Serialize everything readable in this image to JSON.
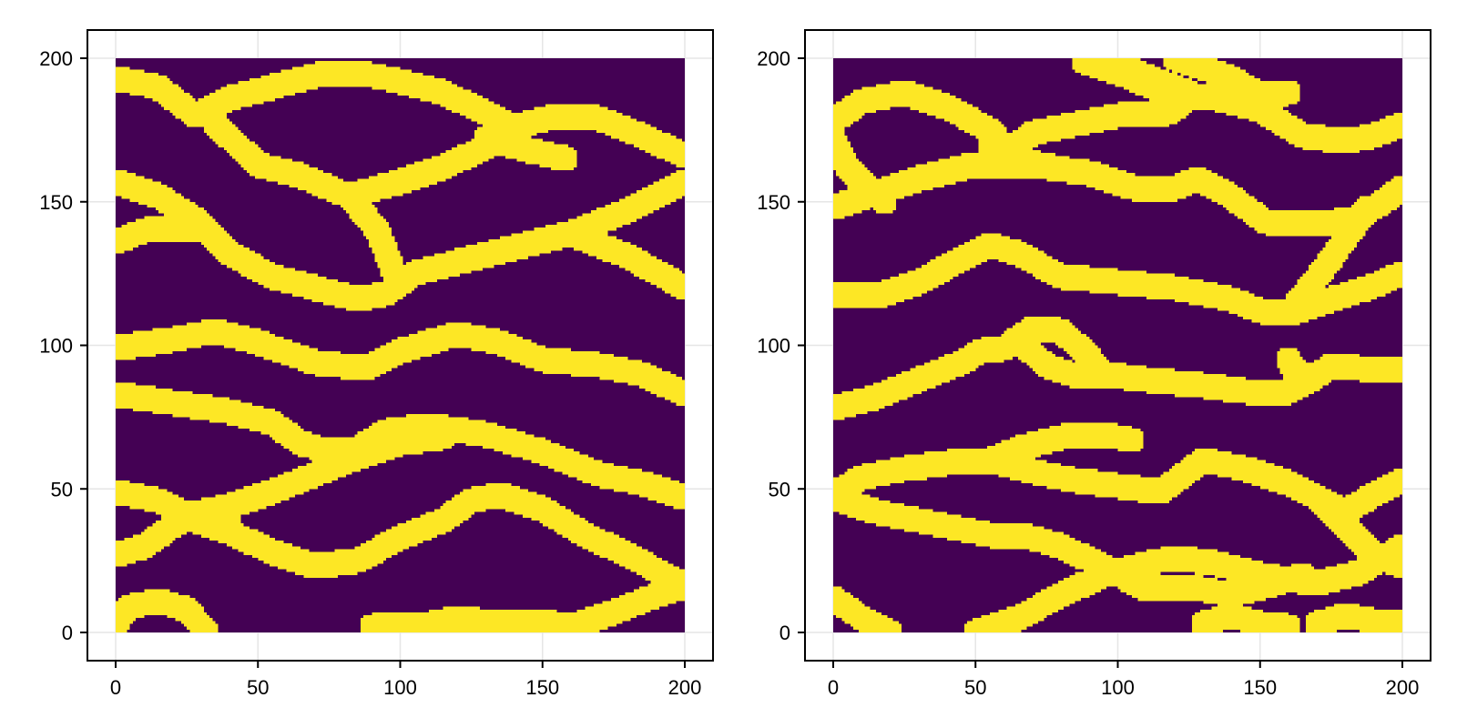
{
  "figure": {
    "background": "#ffffff",
    "frame_color": "#000000",
    "grid_color": "#e6e6e6",
    "font": "sans"
  },
  "chart_data": [
    {
      "type": "heatmap",
      "title": "",
      "xlabel": "",
      "ylabel": "",
      "xlim": [
        -10,
        210
      ],
      "ylim": [
        -10,
        210
      ],
      "grid": true,
      "x_ticks": [
        0,
        50,
        100,
        150,
        200
      ],
      "y_ticks": [
        0,
        50,
        100,
        150,
        200
      ],
      "x_tick_labels": [
        "0",
        "50",
        "100",
        "150",
        "200"
      ],
      "y_tick_labels": [
        "0",
        "50",
        "100",
        "150",
        "200"
      ],
      "extent": [
        0,
        200,
        0,
        200
      ],
      "grid_size": 200,
      "value_range": [
        0,
        1
      ],
      "colors": {
        "0": "#440154",
        "1": "#fde725"
      },
      "channel_width": 9,
      "channels": [
        [
          [
            0,
            193
          ],
          [
            15,
            190
          ],
          [
            28,
            180
          ],
          [
            40,
            186
          ],
          [
            55,
            190
          ],
          [
            70,
            194
          ],
          [
            85,
            195
          ],
          [
            100,
            192
          ],
          [
            115,
            188
          ],
          [
            128,
            182
          ],
          [
            140,
            176
          ],
          [
            155,
            180
          ],
          [
            170,
            179
          ],
          [
            185,
            173
          ],
          [
            200,
            166
          ]
        ],
        [
          [
            0,
            157
          ],
          [
            15,
            152
          ],
          [
            28,
            144
          ],
          [
            40,
            132
          ],
          [
            55,
            124
          ],
          [
            70,
            120
          ],
          [
            85,
            116
          ],
          [
            95,
            118
          ],
          [
            105,
            125
          ],
          [
            120,
            129
          ],
          [
            140,
            134
          ],
          [
            160,
            139
          ],
          [
            180,
            147
          ],
          [
            200,
            157
          ]
        ],
        [
          [
            0,
            136
          ],
          [
            10,
            140
          ],
          [
            25,
            141
          ],
          [
            32,
            140
          ]
        ],
        [
          [
            35,
            177
          ],
          [
            50,
            163
          ],
          [
            65,
            159
          ],
          [
            82,
            152
          ],
          [
            100,
            157
          ],
          [
            115,
            162
          ],
          [
            130,
            169
          ]
        ],
        [
          [
            82,
            152
          ],
          [
            92,
            140
          ],
          [
            98,
            125
          ]
        ],
        [
          [
            130,
            172
          ],
          [
            145,
            168
          ],
          [
            158,
            165
          ]
        ],
        [
          [
            162,
            138
          ],
          [
            180,
            131
          ],
          [
            200,
            120
          ]
        ],
        [
          [
            0,
            99
          ],
          [
            20,
            102
          ],
          [
            35,
            105
          ],
          [
            50,
            101
          ],
          [
            70,
            94
          ],
          [
            88,
            92
          ],
          [
            100,
            98
          ],
          [
            120,
            104
          ],
          [
            135,
            101
          ],
          [
            150,
            95
          ],
          [
            170,
            93
          ],
          [
            185,
            90
          ],
          [
            200,
            83
          ]
        ],
        [
          [
            0,
            83
          ],
          [
            20,
            80
          ],
          [
            40,
            77
          ],
          [
            55,
            73
          ],
          [
            65,
            66
          ],
          [
            75,
            63
          ],
          [
            85,
            64
          ],
          [
            95,
            70
          ],
          [
            110,
            72
          ],
          [
            130,
            69
          ],
          [
            150,
            63
          ],
          [
            170,
            55
          ],
          [
            185,
            52
          ],
          [
            200,
            47
          ]
        ],
        [
          [
            0,
            49
          ],
          [
            15,
            46
          ],
          [
            25,
            41
          ],
          [
            40,
            44
          ],
          [
            55,
            49
          ],
          [
            70,
            55
          ],
          [
            85,
            61
          ],
          [
            100,
            66
          ],
          [
            115,
            68
          ]
        ],
        [
          [
            0,
            27
          ],
          [
            10,
            30
          ],
          [
            20,
            37
          ],
          [
            30,
            42
          ],
          [
            40,
            41
          ]
        ],
        [
          [
            25,
            40
          ],
          [
            40,
            35
          ],
          [
            55,
            28
          ],
          [
            70,
            23
          ],
          [
            85,
            25
          ],
          [
            100,
            33
          ],
          [
            115,
            39
          ],
          [
            125,
            46
          ],
          [
            135,
            48
          ],
          [
            150,
            43
          ],
          [
            165,
            34
          ],
          [
            180,
            27
          ],
          [
            195,
            19
          ],
          [
            200,
            16
          ]
        ],
        [
          [
            0,
            3
          ],
          [
            5,
            9
          ],
          [
            15,
            11
          ],
          [
            25,
            8
          ],
          [
            32,
            0
          ]
        ],
        [
          [
            90,
            2
          ],
          [
            110,
            3
          ],
          [
            120,
            5
          ],
          [
            135,
            3
          ],
          [
            150,
            4
          ],
          [
            160,
            2
          ],
          [
            175,
            7
          ],
          [
            190,
            13
          ],
          [
            200,
            16
          ]
        ]
      ]
    },
    {
      "type": "heatmap",
      "title": "",
      "xlabel": "",
      "ylabel": "",
      "xlim": [
        -10,
        210
      ],
      "ylim": [
        -10,
        210
      ],
      "grid": true,
      "x_ticks": [
        0,
        50,
        100,
        150,
        200
      ],
      "y_ticks": [
        0,
        50,
        100,
        150,
        200
      ],
      "x_tick_labels": [
        "0",
        "50",
        "100",
        "150",
        "200"
      ],
      "y_tick_labels": [
        "0",
        "50",
        "100",
        "150",
        "200"
      ],
      "extent": [
        0,
        200,
        0,
        200
      ],
      "grid_size": 200,
      "value_range": [
        0,
        1
      ],
      "colors": {
        "0": "#440154",
        "1": "#fde725"
      },
      "channel_width": 9,
      "channels": [
        [
          [
            0,
            178
          ],
          [
            10,
            185
          ],
          [
            25,
            188
          ],
          [
            40,
            183
          ],
          [
            55,
            175
          ],
          [
            63,
            166
          ]
        ],
        [
          [
            60,
            166
          ],
          [
            70,
            174
          ],
          [
            85,
            177
          ],
          [
            100,
            180
          ],
          [
            118,
            181
          ],
          [
            125,
            186
          ]
        ],
        [
          [
            0,
            148
          ],
          [
            15,
            153
          ],
          [
            30,
            158
          ],
          [
            50,
            163
          ],
          [
            65,
            162
          ],
          [
            75,
            163
          ]
        ],
        [
          [
            55,
            169
          ],
          [
            75,
            162
          ],
          [
            90,
            160
          ],
          [
            105,
            155
          ],
          [
            118,
            154
          ],
          [
            128,
            158
          ],
          [
            138,
            153
          ],
          [
            152,
            143
          ],
          [
            170,
            142
          ],
          [
            183,
            144
          ],
          [
            192,
            149
          ],
          [
            200,
            155
          ]
        ],
        [
          [
            0,
            172
          ],
          [
            5,
            162
          ],
          [
            12,
            155
          ],
          [
            18,
            150
          ]
        ],
        [
          [
            88,
            199
          ],
          [
            100,
            195
          ],
          [
            112,
            190
          ],
          [
            125,
            187
          ],
          [
            135,
            186
          ],
          [
            150,
            182
          ],
          [
            165,
            173
          ],
          [
            180,
            171
          ],
          [
            190,
            173
          ],
          [
            200,
            177
          ]
        ],
        [
          [
            100,
            198
          ],
          [
            112,
            193
          ],
          [
            125,
            188
          ],
          [
            128,
            186
          ]
        ],
        [
          [
            120,
            200
          ],
          [
            140,
            193
          ],
          [
            150,
            187
          ],
          [
            160,
            188
          ]
        ],
        [
          [
            0,
            118
          ],
          [
            15,
            117
          ],
          [
            30,
            122
          ],
          [
            45,
            130
          ],
          [
            55,
            135
          ],
          [
            65,
            132
          ],
          [
            80,
            124
          ],
          [
            100,
            122
          ],
          [
            120,
            120
          ],
          [
            140,
            116
          ],
          [
            150,
            112
          ],
          [
            160,
            111
          ]
        ],
        [
          [
            160,
            111
          ],
          [
            172,
            126
          ],
          [
            182,
            140
          ],
          [
            188,
            148
          ]
        ],
        [
          [
            160,
            111
          ],
          [
            175,
            116
          ],
          [
            188,
            120
          ],
          [
            200,
            125
          ]
        ],
        [
          [
            0,
            78
          ],
          [
            15,
            82
          ],
          [
            30,
            88
          ],
          [
            45,
            94
          ],
          [
            52,
            98
          ],
          [
            60,
            99
          ]
        ],
        [
          [
            60,
            99
          ],
          [
            70,
            106
          ],
          [
            80,
            105
          ],
          [
            88,
            98
          ],
          [
            95,
            90
          ],
          [
            110,
            88
          ],
          [
            130,
            86
          ],
          [
            145,
            84
          ],
          [
            158,
            83
          ],
          [
            168,
            88
          ],
          [
            175,
            93
          ],
          [
            185,
            92
          ],
          [
            200,
            91
          ]
        ],
        [
          [
            68,
            99
          ],
          [
            75,
            93
          ],
          [
            83,
            90
          ],
          [
            95,
            89
          ]
        ],
        [
          [
            160,
            95
          ],
          [
            162,
            91
          ],
          [
            168,
            89
          ]
        ],
        [
          [
            0,
            48
          ],
          [
            10,
            54
          ],
          [
            25,
            57
          ],
          [
            40,
            59
          ],
          [
            55,
            60
          ],
          [
            65,
            64
          ],
          [
            80,
            68
          ],
          [
            95,
            69
          ],
          [
            105,
            67
          ]
        ],
        [
          [
            0,
            47
          ],
          [
            15,
            42
          ],
          [
            30,
            39
          ],
          [
            45,
            36
          ],
          [
            55,
            34
          ],
          [
            70,
            33
          ],
          [
            80,
            30
          ],
          [
            95,
            23
          ],
          [
            110,
            15
          ],
          [
            125,
            16
          ],
          [
            140,
            13
          ],
          [
            155,
            17
          ],
          [
            165,
            20
          ]
        ],
        [
          [
            55,
            60
          ],
          [
            70,
            56
          ],
          [
            85,
            53
          ],
          [
            100,
            51
          ],
          [
            115,
            49
          ],
          [
            130,
            60
          ],
          [
            145,
            57
          ],
          [
            160,
            52
          ],
          [
            170,
            47
          ],
          [
            180,
            42
          ],
          [
            190,
            48
          ],
          [
            200,
            53
          ]
        ],
        [
          [
            170,
            47
          ],
          [
            180,
            37
          ],
          [
            190,
            27
          ],
          [
            200,
            23
          ]
        ],
        [
          [
            0,
            12
          ],
          [
            10,
            5
          ],
          [
            20,
            0
          ]
        ],
        [
          [
            50,
            0
          ],
          [
            65,
            5
          ],
          [
            80,
            13
          ],
          [
            95,
            20
          ],
          [
            110,
            24
          ],
          [
            120,
            26
          ],
          [
            135,
            24
          ],
          [
            150,
            20
          ],
          [
            170,
            17
          ],
          [
            185,
            21
          ],
          [
            200,
            30
          ]
        ],
        [
          [
            130,
            3
          ],
          [
            140,
            6
          ],
          [
            150,
            3
          ],
          [
            160,
            2
          ]
        ],
        [
          [
            170,
            3
          ],
          [
            180,
            6
          ],
          [
            190,
            4
          ],
          [
            200,
            3
          ]
        ]
      ]
    }
  ]
}
